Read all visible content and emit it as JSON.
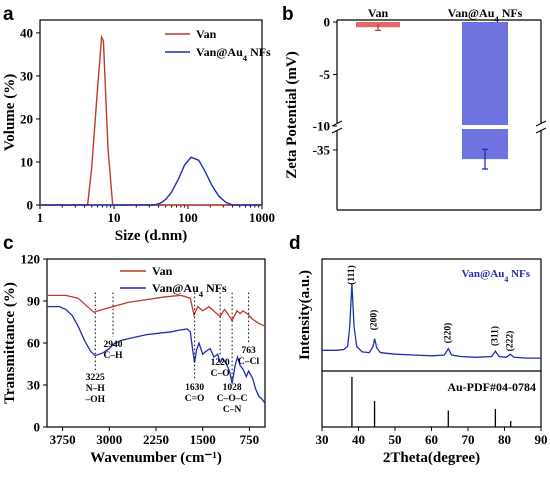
{
  "chart_data": [
    {
      "panel": "a",
      "type": "line",
      "xlabel": "Size (d.nm)",
      "ylabel": "Volume (%)",
      "xscale": "log",
      "xlim": [
        1,
        1000
      ],
      "ylim": [
        0,
        43
      ],
      "xticks": [
        "1",
        "10",
        "100",
        "1000"
      ],
      "yticks": [
        "0",
        "10",
        "20",
        "30",
        "40"
      ],
      "legend_position": "top-right",
      "series": [
        {
          "name": "Van",
          "color": "#c0392b",
          "x": [
            1,
            4.4,
            5.0,
            5.9,
            6.8,
            7.2,
            8.3,
            9.6,
            1000
          ],
          "y": [
            0,
            0,
            8.7,
            25.4,
            39,
            38.2,
            13.1,
            0,
            0
          ]
        },
        {
          "name": "Van@Au4 NFs",
          "color": "#1f2fb0",
          "x": [
            1,
            35,
            42,
            50,
            60,
            75,
            90,
            110,
            140,
            170,
            210,
            260,
            320,
            400,
            1000
          ],
          "y": [
            0,
            0,
            0.4,
            1.3,
            3,
            6.2,
            9.3,
            11.1,
            10.4,
            7.8,
            4.6,
            2.1,
            0.7,
            0,
            0
          ]
        }
      ]
    },
    {
      "panel": "b",
      "type": "bar",
      "ylabel": "Zeta Potential (mV)",
      "ylim": [
        -38,
        0
      ],
      "axis_break": [
        -10,
        -32
      ],
      "yticks": [
        "0",
        "-5",
        "-10",
        "-35"
      ],
      "categories": [
        "Van",
        "Van@Au4 NFs"
      ],
      "values": [
        -0.5,
        -34.2
      ],
      "errors": [
        0.3,
        0.8
      ],
      "colors": [
        "#e26a6a",
        "#6f73e0"
      ]
    },
    {
      "panel": "c",
      "type": "line",
      "xlabel": "Wavenumber (cm⁻¹)",
      "ylabel": "Transmittance (%)",
      "xlim": [
        4000,
        500
      ],
      "ylim": [
        0,
        120
      ],
      "xticks": [
        "3750",
        "3000",
        "2250",
        "1500",
        "750"
      ],
      "yticks": [
        "0",
        "30",
        "60",
        "90",
        "120"
      ],
      "legend_position": "top-right",
      "series": [
        {
          "name": "Van",
          "color": "#c0392b",
          "x": [
            4000,
            3700,
            3500,
            3400,
            3250,
            3100,
            2940,
            2700,
            2400,
            2100,
            1850,
            1700,
            1640,
            1580,
            1500,
            1400,
            1300,
            1220,
            1150,
            1100,
            1028,
            950,
            900,
            850,
            763,
            700,
            600,
            500
          ],
          "y": [
            94,
            94,
            92,
            88,
            82,
            84,
            86,
            89,
            91,
            93,
            94,
            92,
            80,
            86,
            83,
            86,
            82,
            79,
            84,
            81,
            76,
            83,
            81,
            83,
            80,
            77,
            74,
            72
          ]
        },
        {
          "name": "Van@Au4 NFs",
          "color": "#1f2fb0",
          "x": [
            4000,
            3800,
            3700,
            3600,
            3500,
            3400,
            3300,
            3225,
            3100,
            3000,
            2940,
            2800,
            2600,
            2400,
            2200,
            2000,
            1900,
            1750,
            1700,
            1660,
            1630,
            1600,
            1560,
            1500,
            1450,
            1380,
            1320,
            1260,
            1220,
            1180,
            1120,
            1070,
            1028,
            980,
            940,
            900,
            850,
            800,
            763,
            700,
            650,
            600,
            550,
            500
          ],
          "y": [
            86,
            86,
            84,
            80,
            72,
            62,
            54,
            51,
            53,
            56,
            59,
            62,
            64,
            66,
            67,
            68,
            69,
            70,
            68,
            55,
            46,
            55,
            60,
            52,
            54,
            56,
            50,
            52,
            46,
            49,
            45,
            40,
            31,
            44,
            50,
            44,
            41,
            36,
            40,
            35,
            27,
            22,
            20,
            17
          ]
        }
      ],
      "annotations": [
        {
          "x": 3225,
          "lines": [
            "3225",
            "N–H",
            "–OH"
          ]
        },
        {
          "x": 2940,
          "lines": [
            "2940",
            "C–H"
          ]
        },
        {
          "x": 1630,
          "lines": [
            "1630",
            "C=O"
          ]
        },
        {
          "x": 1220,
          "lines": [
            "1220",
            "C–O"
          ]
        },
        {
          "x": 1028,
          "lines": [
            "1028",
            "C–O–C",
            "C–N"
          ]
        },
        {
          "x": 763,
          "lines": [
            "763",
            "C–Cl"
          ]
        }
      ]
    },
    {
      "panel": "d",
      "type": "line",
      "xlabel": "2Theta(degree)",
      "ylabel": "Intensity(a.u.)",
      "xlim": [
        30,
        90
      ],
      "xticks": [
        "30",
        "40",
        "50",
        "60",
        "70",
        "80",
        "90"
      ],
      "series": [
        {
          "name": "Van@Au4 NFs",
          "color": "#1f2fb0",
          "x": [
            30,
            34,
            36,
            37,
            37.6,
            38.2,
            38.8,
            39.5,
            41,
            43,
            44,
            44.4,
            45,
            46,
            50,
            55,
            60,
            63.5,
            64.6,
            65.5,
            68,
            72,
            76.5,
            77.5,
            78.5,
            80.5,
            81.6,
            82.6,
            86,
            90
          ],
          "y": [
            0.15,
            0.15,
            0.16,
            0.2,
            0.45,
            1.0,
            0.45,
            0.2,
            0.13,
            0.12,
            0.2,
            0.3,
            0.18,
            0.12,
            0.1,
            0.09,
            0.08,
            0.09,
            0.17,
            0.09,
            0.07,
            0.06,
            0.07,
            0.14,
            0.07,
            0.06,
            0.1,
            0.06,
            0.05,
            0.05
          ]
        }
      ],
      "peak_labels": [
        {
          "x": 38.2,
          "label": "(111)"
        },
        {
          "x": 44.4,
          "label": "(200)"
        },
        {
          "x": 64.6,
          "label": "(220)"
        },
        {
          "x": 77.5,
          "label": "(311)"
        },
        {
          "x": 81.6,
          "label": "(222)"
        }
      ],
      "reference": {
        "label": "Au-PDF#04-0784",
        "x": [
          38.2,
          44.4,
          64.6,
          77.5,
          81.7
        ],
        "h": [
          1.0,
          0.52,
          0.33,
          0.36,
          0.12
        ]
      }
    }
  ],
  "labels": {
    "panel_a": "a",
    "panel_b": "b",
    "panel_c": "c",
    "panel_d": "d",
    "b_cat1": "Van",
    "b_cat2": "Van@Au₄ NFs",
    "d_sample": "Van@Au₄ NFs"
  }
}
